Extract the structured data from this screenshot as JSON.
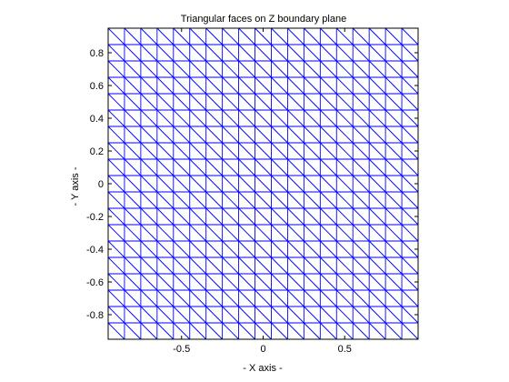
{
  "chart_data": {
    "type": "mesh",
    "title": "Triangular faces on Z boundary plane",
    "xlabel": "- X axis -",
    "ylabel": "- Y axis -",
    "xlim": [
      -0.95,
      0.95
    ],
    "ylim": [
      -0.95,
      0.95
    ],
    "xticks": [
      -0.5,
      0,
      0.5
    ],
    "xtick_labels": [
      "-0.5",
      "0",
      "0.5"
    ],
    "yticks": [
      0.8,
      0.6,
      0.4,
      0.2,
      0,
      -0.2,
      -0.4,
      -0.6,
      -0.8
    ],
    "ytick_labels": [
      "0.8",
      "0.6",
      "0.4",
      "0.2",
      "0",
      "-0.2",
      "-0.4",
      "-0.6",
      "-0.8"
    ],
    "mesh": {
      "divisions_per_axis": 19,
      "cell_size": 0.1,
      "diagonal": "top-left to bottom-right",
      "color": "#0000ff"
    },
    "grid": false
  }
}
